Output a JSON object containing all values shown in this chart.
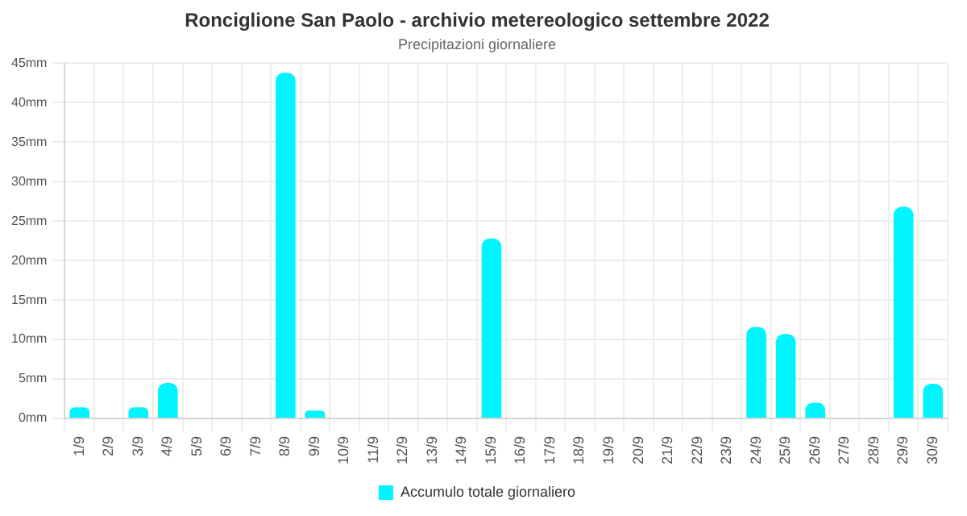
{
  "chart_data": {
    "type": "bar",
    "title": "Ronciglione San Paolo - archivio metereologico settembre 2022",
    "subtitle": "Precipitazioni giornaliere",
    "categories": [
      "1/9",
      "2/9",
      "3/9",
      "4/9",
      "5/9",
      "6/9",
      "7/9",
      "8/9",
      "9/9",
      "10/9",
      "11/9",
      "12/9",
      "13/9",
      "14/9",
      "15/9",
      "16/9",
      "17/9",
      "18/9",
      "19/9",
      "20/9",
      "21/9",
      "22/9",
      "23/9",
      "24/9",
      "25/9",
      "26/9",
      "27/9",
      "28/9",
      "29/9",
      "30/9"
    ],
    "series": [
      {
        "name": "Accumulo totale giornaliero",
        "color": "#00f5ff",
        "values": [
          1.4,
          0,
          1.4,
          4.5,
          0,
          0,
          0,
          43.8,
          1.0,
          0,
          0,
          0,
          0,
          0,
          22.8,
          0,
          0,
          0,
          0,
          0,
          0,
          0,
          0,
          11.6,
          10.7,
          2.0,
          0,
          0,
          26.8,
          4.4
        ]
      }
    ],
    "ylim": [
      0,
      45
    ],
    "yticks": [
      {
        "value": 0,
        "label": "0mm"
      },
      {
        "value": 5,
        "label": "5mm"
      },
      {
        "value": 10,
        "label": "10mm"
      },
      {
        "value": 15,
        "label": "15mm"
      },
      {
        "value": 20,
        "label": "20mm"
      },
      {
        "value": 25,
        "label": "25mm"
      },
      {
        "value": 30,
        "label": "30mm"
      },
      {
        "value": 35,
        "label": "35mm"
      },
      {
        "value": 40,
        "label": "40mm"
      },
      {
        "value": 45,
        "label": "45mm"
      }
    ],
    "grid": true,
    "legend": "bottom"
  }
}
